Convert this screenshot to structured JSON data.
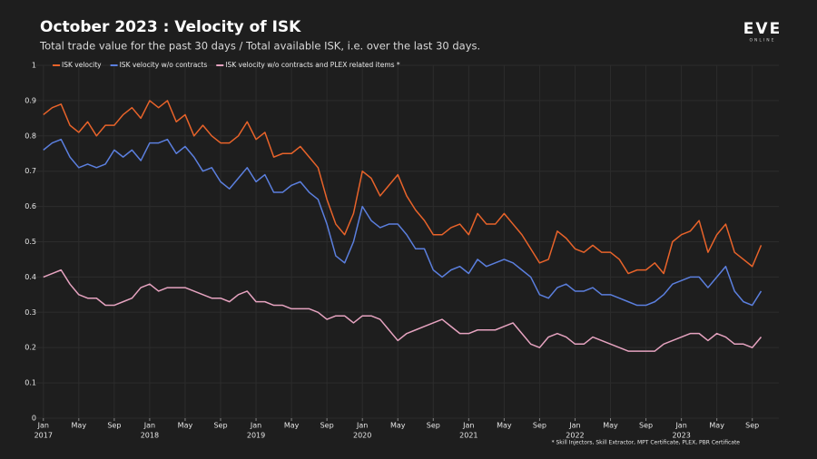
{
  "chart_data": {
    "type": "line",
    "title": "October 2023 : Velocity of ISK",
    "subtitle": "Total trade value for the past 30 days / Total available ISK, i.e. over the last 30 days.",
    "logo": "EVE",
    "logo_sub": "ONLINE",
    "footnote": "* Skill Injectors, Skill Extractor, MPT Certificate, PLEX, PBR Certificate",
    "x": [
      "2017-01",
      "2017-02",
      "2017-03",
      "2017-04",
      "2017-05",
      "2017-06",
      "2017-07",
      "2017-08",
      "2017-09",
      "2017-10",
      "2017-11",
      "2017-12",
      "2018-01",
      "2018-02",
      "2018-03",
      "2018-04",
      "2018-05",
      "2018-06",
      "2018-07",
      "2018-08",
      "2018-09",
      "2018-10",
      "2018-11",
      "2018-12",
      "2019-01",
      "2019-02",
      "2019-03",
      "2019-04",
      "2019-05",
      "2019-06",
      "2019-07",
      "2019-08",
      "2019-09",
      "2019-10",
      "2019-11",
      "2019-12",
      "2020-01",
      "2020-02",
      "2020-03",
      "2020-04",
      "2020-05",
      "2020-06",
      "2020-07",
      "2020-08",
      "2020-09",
      "2020-10",
      "2020-11",
      "2020-12",
      "2021-01",
      "2021-02",
      "2021-03",
      "2021-04",
      "2021-05",
      "2021-06",
      "2021-07",
      "2021-08",
      "2021-09",
      "2021-10",
      "2021-11",
      "2021-12",
      "2022-01",
      "2022-02",
      "2022-03",
      "2022-04",
      "2022-05",
      "2022-06",
      "2022-07",
      "2022-08",
      "2022-09",
      "2022-10",
      "2022-11",
      "2022-12",
      "2023-01",
      "2023-02",
      "2023-03",
      "2023-04",
      "2023-05",
      "2023-06",
      "2023-07",
      "2023-08",
      "2023-09",
      "2023-10"
    ],
    "series": [
      {
        "name": "ISK velocity",
        "color": "#e8632a",
        "values": [
          0.86,
          0.88,
          0.89,
          0.83,
          0.81,
          0.84,
          0.8,
          0.83,
          0.83,
          0.86,
          0.88,
          0.85,
          0.9,
          0.88,
          0.9,
          0.84,
          0.86,
          0.8,
          0.83,
          0.8,
          0.78,
          0.78,
          0.8,
          0.84,
          0.79,
          0.81,
          0.74,
          0.75,
          0.75,
          0.77,
          0.74,
          0.71,
          0.62,
          0.55,
          0.52,
          0.58,
          0.7,
          0.68,
          0.63,
          0.66,
          0.69,
          0.63,
          0.59,
          0.56,
          0.52,
          0.52,
          0.54,
          0.55,
          0.52,
          0.58,
          0.55,
          0.55,
          0.58,
          0.55,
          0.52,
          0.48,
          0.44,
          0.45,
          0.53,
          0.51,
          0.48,
          0.47,
          0.49,
          0.47,
          0.47,
          0.45,
          0.41,
          0.42,
          0.42,
          0.44,
          0.41,
          0.5,
          0.52,
          0.53,
          0.56,
          0.47,
          0.52,
          0.55,
          0.47,
          0.45,
          0.43,
          0.49
        ]
      },
      {
        "name": "ISK velocity w/o contracts",
        "color": "#5b7fde",
        "values": [
          0.76,
          0.78,
          0.79,
          0.74,
          0.71,
          0.72,
          0.71,
          0.72,
          0.76,
          0.74,
          0.76,
          0.73,
          0.78,
          0.78,
          0.79,
          0.75,
          0.77,
          0.74,
          0.7,
          0.71,
          0.67,
          0.65,
          0.68,
          0.71,
          0.67,
          0.69,
          0.64,
          0.64,
          0.66,
          0.67,
          0.64,
          0.62,
          0.55,
          0.46,
          0.44,
          0.5,
          0.6,
          0.56,
          0.54,
          0.55,
          0.55,
          0.52,
          0.48,
          0.48,
          0.42,
          0.4,
          0.42,
          0.43,
          0.41,
          0.45,
          0.43,
          0.44,
          0.45,
          0.44,
          0.42,
          0.4,
          0.35,
          0.34,
          0.37,
          0.38,
          0.36,
          0.36,
          0.37,
          0.35,
          0.35,
          0.34,
          0.33,
          0.32,
          0.32,
          0.33,
          0.35,
          0.38,
          0.39,
          0.4,
          0.4,
          0.37,
          0.4,
          0.43,
          0.36,
          0.33,
          0.32,
          0.36
        ]
      },
      {
        "name": "ISK velocity w/o contracts and PLEX related items *",
        "color": "#e6a3c0",
        "values": [
          0.4,
          0.41,
          0.42,
          0.38,
          0.35,
          0.34,
          0.34,
          0.32,
          0.32,
          0.33,
          0.34,
          0.37,
          0.38,
          0.36,
          0.37,
          0.37,
          0.37,
          0.36,
          0.35,
          0.34,
          0.34,
          0.33,
          0.35,
          0.36,
          0.33,
          0.33,
          0.32,
          0.32,
          0.31,
          0.31,
          0.31,
          0.3,
          0.28,
          0.29,
          0.29,
          0.27,
          0.29,
          0.29,
          0.28,
          0.25,
          0.22,
          0.24,
          0.25,
          0.26,
          0.27,
          0.28,
          0.26,
          0.24,
          0.24,
          0.25,
          0.25,
          0.25,
          0.26,
          0.27,
          0.24,
          0.21,
          0.2,
          0.23,
          0.24,
          0.23,
          0.21,
          0.21,
          0.23,
          0.22,
          0.21,
          0.2,
          0.19,
          0.19,
          0.19,
          0.19,
          0.21,
          0.22,
          0.23,
          0.24,
          0.24,
          0.22,
          0.24,
          0.23,
          0.21,
          0.21,
          0.2,
          0.23
        ]
      }
    ],
    "xlim": [
      "2016-12",
      "2023-12"
    ],
    "xticks": [
      {
        "value": "2017-01",
        "label": "Jan"
      },
      {
        "value": "2017-05",
        "label": "May"
      },
      {
        "value": "2017-09",
        "label": "Sep"
      },
      {
        "value": "2018-01",
        "label": "Jan"
      },
      {
        "value": "2018-05",
        "label": "May"
      },
      {
        "value": "2018-09",
        "label": "Sep"
      },
      {
        "value": "2019-01",
        "label": "Jan"
      },
      {
        "value": "2019-05",
        "label": "May"
      },
      {
        "value": "2019-09",
        "label": "Sep"
      },
      {
        "value": "2020-01",
        "label": "Jan"
      },
      {
        "value": "2020-05",
        "label": "May"
      },
      {
        "value": "2020-09",
        "label": "Sep"
      },
      {
        "value": "2021-01",
        "label": "Jan"
      },
      {
        "value": "2021-05",
        "label": "May"
      },
      {
        "value": "2021-09",
        "label": "Sep"
      },
      {
        "value": "2022-01",
        "label": "Jan"
      },
      {
        "value": "2022-05",
        "label": "May"
      },
      {
        "value": "2022-09",
        "label": "Sep"
      },
      {
        "value": "2023-01",
        "label": "Jan"
      },
      {
        "value": "2023-05",
        "label": "May"
      },
      {
        "value": "2023-09",
        "label": "Sep"
      }
    ],
    "xtick_years": [
      {
        "value": "2017-01",
        "label": "2017"
      },
      {
        "value": "2018-01",
        "label": "2018"
      },
      {
        "value": "2019-01",
        "label": "2019"
      },
      {
        "value": "2020-01",
        "label": "2020"
      },
      {
        "value": "2021-01",
        "label": "2021"
      },
      {
        "value": "2022-01",
        "label": "2022"
      },
      {
        "value": "2023-01",
        "label": "2023"
      }
    ],
    "ylim": [
      0,
      1
    ],
    "yticks": [
      0,
      0.1,
      0.2,
      0.3,
      0.4,
      0.5,
      0.6,
      0.7,
      0.8,
      0.9,
      1
    ],
    "grid": true
  }
}
